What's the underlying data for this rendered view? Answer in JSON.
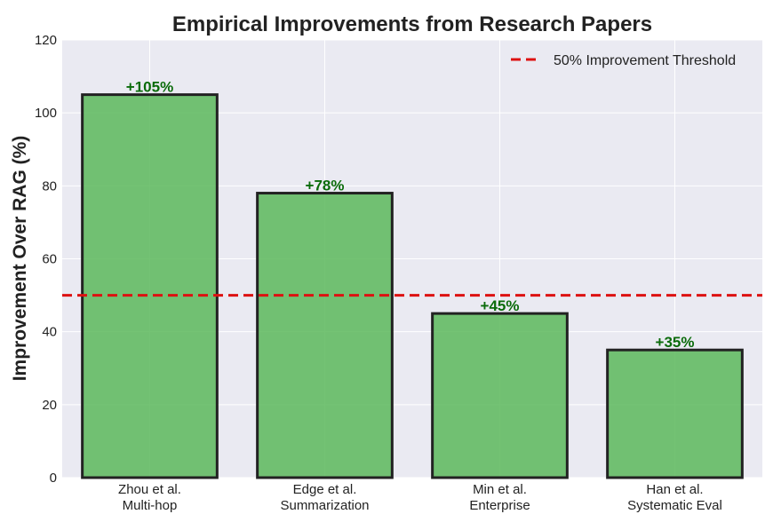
{
  "chart_data": {
    "type": "bar",
    "title": "Empirical Improvements from Research Papers",
    "xlabel": "",
    "ylabel": "Improvement Over RAG (%)",
    "categories": [
      [
        "Zhou et al.",
        "Multi-hop"
      ],
      [
        "Edge et al.",
        "Summarization"
      ],
      [
        "Min et al.",
        "Enterprise"
      ],
      [
        "Han et al.",
        "Systematic Eval"
      ]
    ],
    "values": [
      105,
      78,
      45,
      35
    ],
    "data_labels": [
      "+105%",
      "+78%",
      "+45%",
      "+35%"
    ],
    "ylim": [
      0,
      120
    ],
    "yticks": [
      "0",
      "20",
      "40",
      "60",
      "80",
      "100",
      "120"
    ],
    "grid": true,
    "threshold": {
      "value": 50,
      "label": "50% Improvement Threshold"
    },
    "legend_position": "top-right",
    "colors": {
      "bar_fill": "#5cb85c",
      "bar_edge": "#222222",
      "label_color": "#0a6b0a",
      "threshold_color": "#dd1111",
      "plot_background": "#eaeaf2",
      "grid": "#ffffff"
    }
  }
}
